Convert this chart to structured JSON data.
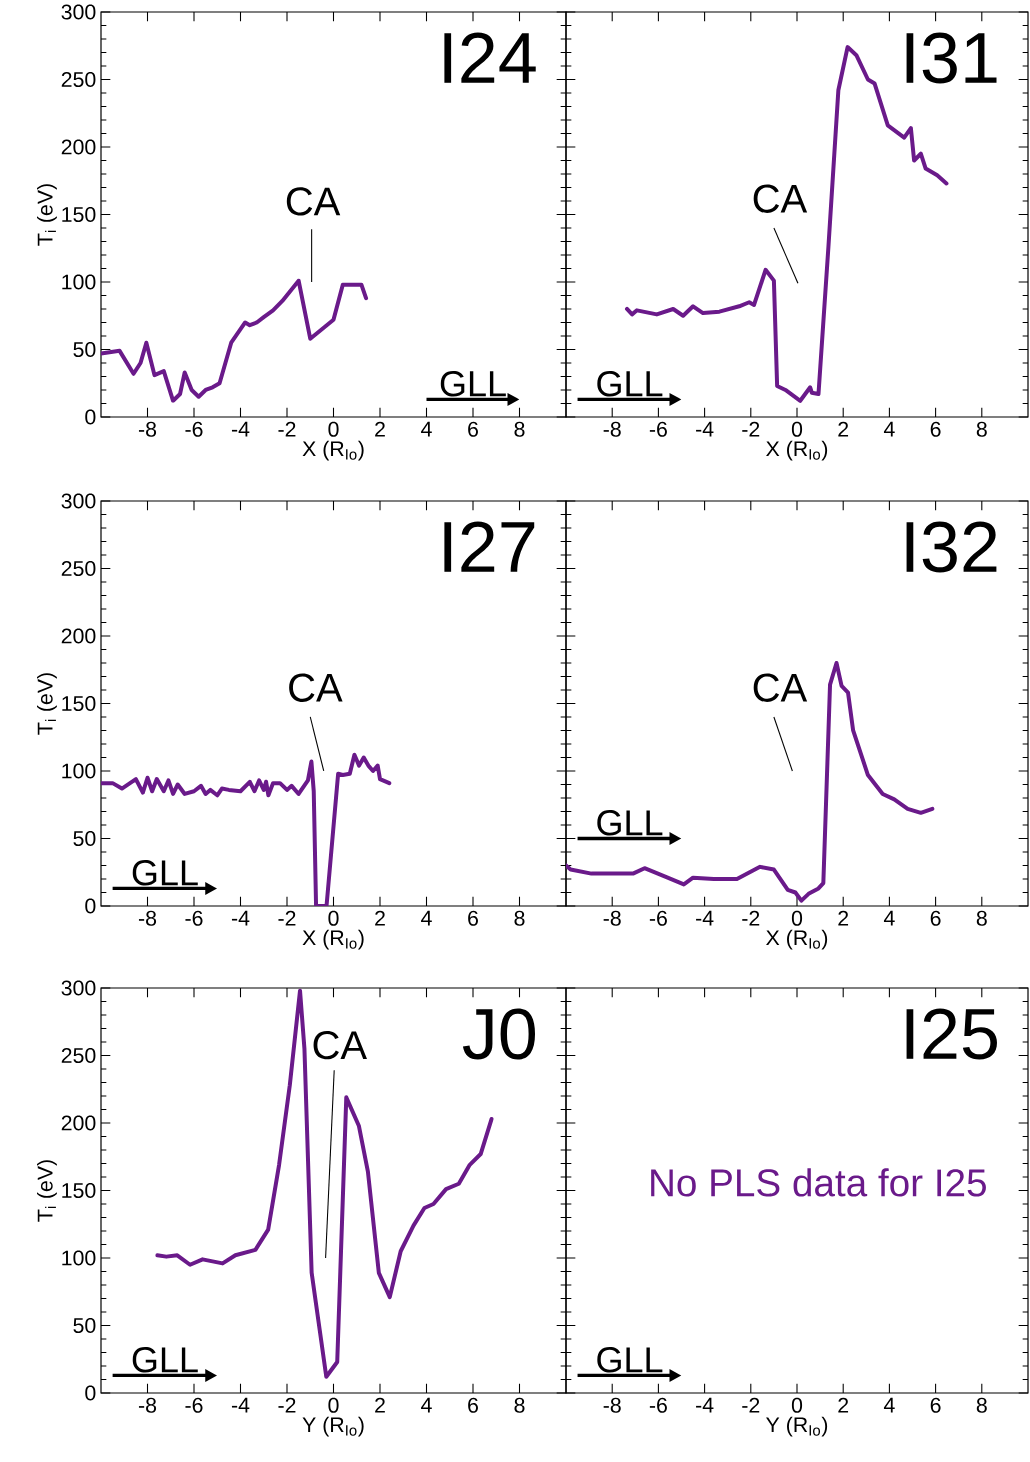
{
  "chart_data": [
    {
      "type": "line",
      "xlabel": "X  (R$_{Io}$)",
      "ylabel": "T$_{i}$ (eV)",
      "xlim": [
        -10,
        10
      ],
      "ylim": [
        0,
        300
      ],
      "xticks": [
        -8,
        -6,
        -4,
        -2,
        0,
        2,
        4,
        6,
        8
      ],
      "yticks": [
        0,
        50,
        100,
        150,
        200,
        250,
        300
      ],
      "series": [
        {
          "color": "#6a1a8a",
          "x": [
            -10,
            -9.2,
            -8.6,
            -8.3,
            -8.05,
            -7.7,
            -7.3,
            -6.9,
            -6.6,
            -6.4,
            -6.1,
            -5.8,
            -5.5,
            -5.2,
            -4.9,
            -4.4,
            -4.0,
            -3.8,
            -3.6,
            -3.3,
            -3.0,
            -2.6,
            -2.2,
            -1.5,
            -1.0,
            0,
            0.4,
            1.2,
            1.4
          ],
          "values": [
            47,
            49,
            32,
            40,
            55,
            31,
            34,
            12,
            17,
            33,
            20,
            15,
            20,
            22,
            25,
            55,
            65,
            70,
            68,
            70,
            74,
            79,
            86,
            101,
            58,
            72,
            98,
            98,
            88
          ]
        }
      ],
      "annotations": [
        "I24",
        "GLL",
        "CA"
      ]
    },
    {
      "type": "line",
      "xlabel": "X  (R$_{Io}$)",
      "xlim": [
        -10,
        10
      ],
      "ylim": [
        0,
        300
      ],
      "xticks": [
        -8,
        -6,
        -4,
        -2,
        0,
        2,
        4,
        6,
        8
      ],
      "yticks": [
        0,
        50,
        100,
        150,
        200,
        250,
        300
      ],
      "tick_labels": "x",
      "series": [
        {
          "color": "#6a1a8a",
          "x": [
            -7.36,
            -7.14,
            -6.93,
            -6.07,
            -5.36,
            -4.93,
            -4.5,
            -4.07,
            -3.36,
            -2.5,
            -2.07,
            -1.86,
            -1.36,
            -1.0,
            -0.86,
            -0.5,
            0.14,
            0.57,
            0.64,
            0.93,
            1.36,
            1.79,
            2.19,
            2.57,
            3.07,
            3.36,
            3.93,
            4.64,
            4.93,
            5.07,
            5.36,
            5.57,
            6.07,
            6.47
          ],
          "values": [
            80,
            76,
            79,
            76,
            80,
            75,
            82,
            77,
            78,
            82,
            85,
            83,
            109,
            101,
            23,
            20,
            12,
            22,
            18,
            17,
            126,
            242,
            274,
            268,
            250,
            247,
            216,
            207,
            214,
            190,
            195,
            184,
            179,
            173
          ]
        }
      ],
      "annotations": [
        "I31",
        "GLL",
        "CA"
      ]
    },
    {
      "type": "line",
      "xlabel": "X  (R$_{Io}$)",
      "ylabel": "T$_{i}$ (eV)",
      "xlim": [
        -10,
        10
      ],
      "ylim": [
        0,
        300
      ],
      "xticks": [
        -8,
        -6,
        -4,
        -2,
        0,
        2,
        4,
        6,
        8
      ],
      "yticks": [
        0,
        50,
        100,
        150,
        200,
        250,
        300
      ],
      "series": [
        {
          "color": "#6a1a8a",
          "x": [
            -10,
            -9.5,
            -9.1,
            -8.5,
            -8.2,
            -8.0,
            -7.8,
            -7.6,
            -7.3,
            -7.1,
            -6.9,
            -6.7,
            -6.4,
            -6.0,
            -5.7,
            -5.5,
            -5.3,
            -5.0,
            -4.8,
            -4.5,
            -4.0,
            -3.6,
            -3.4,
            -3.2,
            -3.0,
            -2.9,
            -2.8,
            -2.6,
            -2.3,
            -2.0,
            -1.8,
            -1.5,
            -1.1,
            -0.95,
            -0.85,
            -0.75,
            -0.3,
            0.2,
            0.4,
            0.7,
            0.9,
            1.1,
            1.3,
            1.5,
            1.7,
            1.9,
            2.0,
            2.4
          ],
          "values": [
            91,
            91,
            87,
            94,
            84,
            95,
            85,
            94,
            85,
            93,
            83,
            90,
            83,
            85,
            89,
            83,
            86,
            82,
            87,
            86,
            85,
            92,
            85,
            93,
            86,
            92,
            82,
            91,
            91,
            86,
            89,
            83,
            93,
            107,
            85,
            0,
            0,
            98,
            97,
            98,
            112,
            104,
            110,
            104,
            100,
            104,
            94,
            91
          ]
        }
      ],
      "annotations": [
        "I27",
        "GLL",
        "CA"
      ]
    },
    {
      "type": "line",
      "xlabel": "X  (R$_{Io}$)",
      "xlim": [
        -10,
        10
      ],
      "ylim": [
        0,
        300
      ],
      "xticks": [
        -8,
        -6,
        -4,
        -2,
        0,
        2,
        4,
        6,
        8
      ],
      "yticks": [
        0,
        50,
        100,
        150,
        200,
        250,
        300
      ],
      "tick_labels": "x",
      "series": [
        {
          "color": "#6a1a8a",
          "x": [
            -10,
            -9.8,
            -8.9,
            -7.1,
            -6.6,
            -5.6,
            -4.9,
            -4.5,
            -3.6,
            -2.6,
            -1.6,
            -1.0,
            -0.4,
            -0.07,
            0.19,
            0.5,
            0.93,
            1.14,
            1.43,
            1.71,
            1.93,
            2.21,
            2.43,
            3.07,
            3.71,
            4.21,
            4.79,
            5.36,
            5.86
          ],
          "values": [
            30,
            27,
            24,
            24,
            28,
            21,
            16,
            21,
            20,
            20,
            29,
            27,
            12,
            10,
            4,
            9,
            13,
            17,
            164,
            180,
            163,
            158,
            130,
            97,
            83,
            79,
            72,
            69,
            72
          ]
        }
      ],
      "annotations": [
        "I32",
        "GLL",
        "CA"
      ]
    },
    {
      "type": "line",
      "xlabel": "Y  (R$_{Io}$)",
      "ylabel": "T$_{i}$ (eV)",
      "xlim": [
        -10,
        10
      ],
      "ylim": [
        0,
        300
      ],
      "xticks": [
        -8,
        -6,
        -4,
        -2,
        0,
        2,
        4,
        6,
        8
      ],
      "yticks": [
        0,
        50,
        100,
        150,
        200,
        250,
        300
      ],
      "series": [
        {
          "color": "#6a1a8a",
          "x": [
            -7.58,
            -7.19,
            -6.72,
            -6.17,
            -5.63,
            -4.77,
            -4.22,
            -3.36,
            -2.81,
            -2.34,
            -1.88,
            -1.44,
            -1.25,
            -0.94,
            -0.31,
            0.16,
            0.55,
            1.09,
            1.48,
            1.95,
            2.42,
            2.89,
            3.44,
            3.91,
            4.3,
            4.84,
            5.39,
            5.86,
            6.33,
            6.8
          ],
          "values": [
            102,
            101,
            102,
            95,
            99,
            96,
            102,
            106,
            121,
            169,
            228,
            298,
            255,
            89,
            12,
            23,
            219,
            198,
            164,
            89,
            71,
            105,
            124,
            137,
            140,
            151,
            155,
            169,
            177,
            203
          ]
        }
      ],
      "annotations": [
        "J0",
        "GLL",
        "CA"
      ]
    },
    {
      "type": "line",
      "xlabel": "Y  (R$_{Io}$)",
      "xlim": [
        -10,
        10
      ],
      "ylim": [
        0,
        300
      ],
      "xticks": [
        -8,
        -6,
        -4,
        -2,
        0,
        2,
        4,
        6,
        8
      ],
      "yticks": [
        0,
        50,
        100,
        150,
        200,
        250,
        300
      ],
      "tick_labels": "x",
      "annotations": [
        "I25",
        "GLL",
        "No PLS data for I25"
      ]
    }
  ]
}
